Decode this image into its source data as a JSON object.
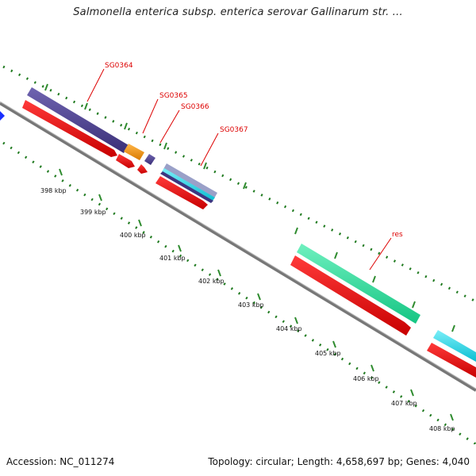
{
  "title": "Salmonella enterica subsp. enterica serovar Gallinarum str. ...",
  "footer": {
    "accession": "Accession: NC_011274",
    "summary": "Topology: circular; Length: 4,658,697 bp; Genes: 4,040"
  },
  "colors": {
    "backbone": "#8a8a8a",
    "minor_tick": "#1f7a1f",
    "major_tick": "#2e8b2e",
    "cds": "#ee0000",
    "label_line": "#dd0000",
    "navy_gene": "#4b3f8f",
    "orange_gene": "#f0900a",
    "green_gene": "#2fe39a",
    "cyan_gene": "#18d8e8",
    "blue_gene": "#1a2fff"
  },
  "map": {
    "ticks": [
      {
        "kbp": 398,
        "label": "398 kbp"
      },
      {
        "kbp": 399,
        "label": "399 kbp"
      },
      {
        "kbp": 400,
        "label": "400 kbp"
      },
      {
        "kbp": 401,
        "label": "401 kbp"
      },
      {
        "kbp": 402,
        "label": "402 kbp"
      },
      {
        "kbp": 403,
        "label": "403 kbp"
      },
      {
        "kbp": 404,
        "label": "404 kbp"
      },
      {
        "kbp": 405,
        "label": "405 kbp"
      },
      {
        "kbp": 406,
        "label": "406 kbp"
      },
      {
        "kbp": 407,
        "label": "407 kbp"
      },
      {
        "kbp": 408,
        "label": "408 kbp"
      }
    ],
    "gene_labels": [
      {
        "name": "SG0364"
      },
      {
        "name": "SG0365"
      },
      {
        "name": "SG0366"
      },
      {
        "name": "SG0367"
      },
      {
        "name": "res"
      }
    ]
  }
}
